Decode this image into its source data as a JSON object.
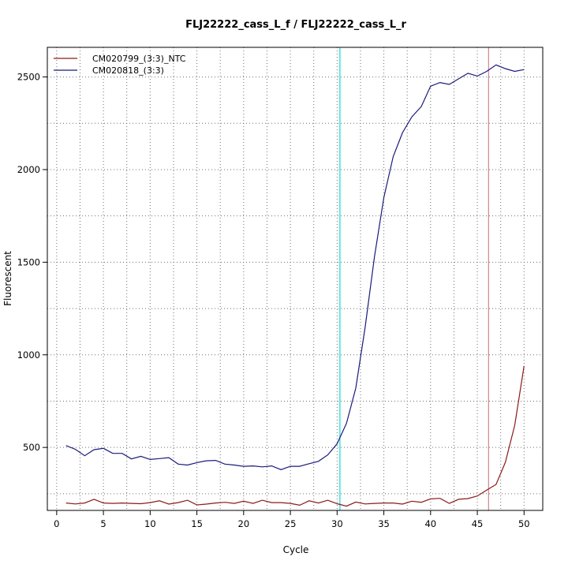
{
  "chart_data": {
    "type": "line",
    "title": "FLJ22222_cass_L_f / FLJ22222_cass_L_r",
    "xlabel": "Cycle",
    "ylabel": "Fluorescent",
    "xlim": [
      -1,
      52
    ],
    "ylim": [
      160,
      2660
    ],
    "xticks": [
      0,
      5,
      10,
      15,
      20,
      25,
      30,
      35,
      40,
      45,
      50
    ],
    "yticks": [
      500,
      1000,
      1500,
      2000,
      2500
    ],
    "grid": true,
    "legend_position": "top-left",
    "colors": {
      "series_ntc": "#8b1a1a",
      "series_sample": "#1a1a7a",
      "threshold_line": "#40e0e0",
      "ct_line": "#c07080",
      "grid": "#707070"
    },
    "series": [
      {
        "name": "CM020799_(3:3)_NTC",
        "x": [
          1,
          2,
          3,
          4,
          5,
          6,
          7,
          8,
          9,
          10,
          11,
          12,
          13,
          14,
          15,
          16,
          17,
          18,
          19,
          20,
          21,
          22,
          23,
          24,
          25,
          26,
          27,
          28,
          29,
          30,
          31,
          32,
          33,
          34,
          35,
          36,
          37,
          38,
          39,
          40,
          41,
          42,
          43,
          44,
          45,
          46,
          47,
          48,
          49,
          50
        ],
        "values": [
          200,
          195,
          200,
          220,
          200,
          198,
          200,
          198,
          196,
          202,
          212,
          194,
          202,
          215,
          190,
          194,
          200,
          204,
          198,
          210,
          198,
          215,
          202,
          202,
          198,
          188,
          212,
          200,
          215,
          196,
          183,
          205,
          195,
          198,
          200,
          200,
          194,
          210,
          204,
          222,
          225,
          198,
          220,
          224,
          238,
          270,
          300,
          420,
          620,
          940
        ]
      },
      {
        "name": "CM020818_(3:3)",
        "x": [
          1,
          2,
          3,
          4,
          5,
          6,
          7,
          8,
          9,
          10,
          11,
          12,
          13,
          14,
          15,
          16,
          17,
          18,
          19,
          20,
          21,
          22,
          23,
          24,
          25,
          26,
          27,
          28,
          29,
          30,
          31,
          32,
          33,
          34,
          35,
          36,
          37,
          38,
          39,
          40,
          41,
          42,
          43,
          44,
          45,
          46,
          47,
          48,
          49,
          50
        ],
        "values": [
          510,
          490,
          455,
          488,
          495,
          468,
          468,
          438,
          452,
          435,
          440,
          445,
          410,
          405,
          418,
          428,
          430,
          410,
          405,
          398,
          400,
          395,
          400,
          380,
          398,
          398,
          412,
          425,
          460,
          520,
          630,
          820,
          1150,
          1530,
          1850,
          2070,
          2200,
          2285,
          2340,
          2450,
          2470,
          2460,
          2490,
          2520,
          2505,
          2530,
          2565,
          2545,
          2530,
          2540
        ]
      }
    ],
    "vlines": [
      {
        "x": 30.3,
        "role": "threshold"
      },
      {
        "x": 46.2,
        "role": "ct"
      }
    ]
  }
}
